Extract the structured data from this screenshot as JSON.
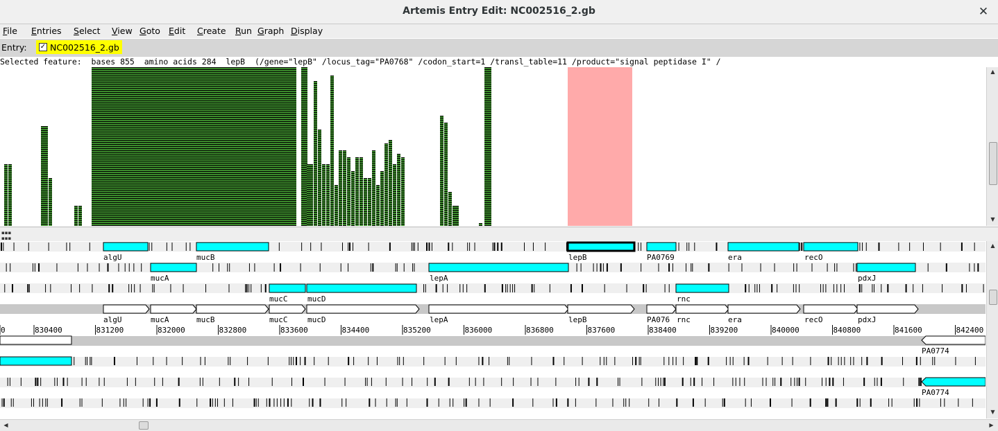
{
  "window": {
    "title": "Artemis Entry Edit: NC002516_2.gb",
    "close_symbol": "✕"
  },
  "menu": [
    "File",
    "Entries",
    "Select",
    "View",
    "Goto",
    "Edit",
    "Create",
    "Run",
    "Graph",
    "Display"
  ],
  "entry": {
    "label": "Entry:",
    "name": "NC002516_2.gb",
    "checked": true
  },
  "selected_feature": "Selected feature:  bases 855  amino acids 284  lepB  (/gene=\"lepB\" /locus_tag=\"PA0768\" /codon_start=1 /transl_table=11 /product=\"signal peptidase I\" /",
  "colors": {
    "feature_fill": "#00ffff",
    "highlight": "#ffaaaa",
    "graph_green": "#3c8c2c",
    "entry_yellow": "#ffff00"
  },
  "ruler": {
    "ticks": [
      "0",
      "830400",
      "831200",
      "832000",
      "832800",
      "833600",
      "834400",
      "835200",
      "836000",
      "836800",
      "837600",
      "838400",
      "839200",
      "840000",
      "840800",
      "841600",
      "842400"
    ]
  },
  "top_features": [
    {
      "label": "algU",
      "frame": 1
    },
    {
      "label": "mucB",
      "frame": 1
    },
    {
      "label": "lepB",
      "frame": 1,
      "selected": true
    },
    {
      "label": "PA0769",
      "frame": 1
    },
    {
      "label": "era",
      "frame": 1
    },
    {
      "label": "recO",
      "frame": 1
    },
    {
      "label": "mucA",
      "frame": 2
    },
    {
      "label": "lepA",
      "frame": 2
    },
    {
      "label": "pdxJ",
      "frame": 2
    },
    {
      "label": "mucC",
      "frame": 3
    },
    {
      "label": "mucD",
      "frame": 3
    },
    {
      "label": "rnc",
      "frame": 3
    }
  ],
  "forward_strand_labels": [
    "algU",
    "mucA",
    "mucB",
    "mucC",
    "mucD",
    "lepA",
    "lepB",
    "PA076",
    "rnc",
    "era",
    "recO",
    "pdxJ"
  ],
  "reverse_features": [
    {
      "label": "PA0774",
      "frame": 1
    },
    {
      "label": "PA0774",
      "frame": 3
    }
  ]
}
